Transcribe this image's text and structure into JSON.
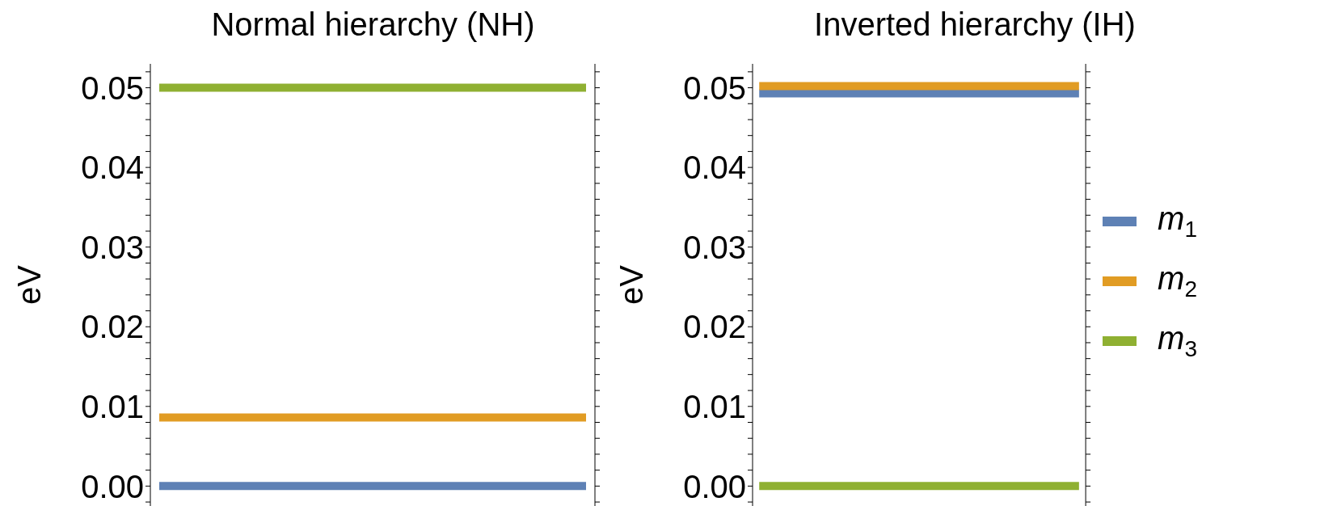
{
  "chart_data": [
    {
      "type": "line",
      "title": "Normal hierarchy (NH)",
      "ylabel": "eV",
      "categories": [
        null,
        null,
        null,
        null,
        null,
        null,
        null,
        null,
        null,
        null,
        null,
        null,
        null,
        null,
        null,
        null,
        null,
        null,
        null,
        null,
        null,
        null,
        null,
        null,
        null
      ],
      "tick_labels": "y",
      "legend": false,
      "ylim": [
        -0.0025,
        0.053
      ],
      "yticks": [
        {
          "value": -0.002,
          "label": null
        },
        {
          "value": 0,
          "label": "0.00"
        },
        {
          "value": 0.002,
          "label": null
        },
        {
          "value": 0.004,
          "label": null
        },
        {
          "value": 0.006,
          "label": null
        },
        {
          "value": 0.008,
          "label": null
        },
        0.01,
        {
          "value": 0.012,
          "label": null
        },
        {
          "value": 0.014,
          "label": null
        },
        {
          "value": 0.016,
          "label": null
        },
        {
          "value": 0.018,
          "label": null
        },
        0.02,
        {
          "value": 0.022,
          "label": null
        },
        {
          "value": 0.024,
          "label": null
        },
        {
          "value": 0.026,
          "label": null
        },
        {
          "value": 0.028,
          "label": null
        },
        0.03,
        {
          "value": 0.032,
          "label": null
        },
        {
          "value": 0.034,
          "label": null
        },
        {
          "value": 0.036,
          "label": null
        },
        {
          "value": 0.038,
          "label": null
        },
        0.04,
        {
          "value": 0.042,
          "label": null
        },
        {
          "value": 0.044,
          "label": null
        },
        {
          "value": 0.046,
          "label": null
        },
        {
          "value": 0.048,
          "label": null
        },
        0.05,
        {
          "value": 0.052,
          "label": null
        }
      ],
      "series": [
        {
          "color": "#5e81b5",
          "values": [
            0,
            0,
            0,
            0,
            0,
            0,
            0,
            0,
            0,
            0,
            0,
            0,
            0,
            0,
            0,
            0,
            0,
            0,
            0,
            0,
            0,
            0,
            0,
            0,
            0
          ]
        },
        {
          "color": "#e19c24",
          "values": [
            0.0086,
            0.0086,
            0.0086,
            0.0086,
            0.0086,
            0.0086,
            0.0086,
            0.0086,
            0.0086,
            0.0086,
            0.0086,
            0.0086,
            0.0086,
            0.0086,
            0.0086,
            0.0086,
            0.0086,
            0.0086,
            0.0086,
            0.0086,
            0.0086,
            0.0086,
            0.0086,
            0.0086,
            0.0086
          ]
        },
        {
          "color": "#8fb032",
          "values": [
            0.05,
            0.05,
            0.05,
            0.05,
            0.05,
            0.05,
            0.05,
            0.05,
            0.05,
            0.05,
            0.05,
            0.05,
            0.05,
            0.05,
            0.05,
            0.05,
            0.05,
            0.05,
            0.05,
            0.05,
            0.05,
            0.05,
            0.05,
            0.05,
            0.05
          ]
        }
      ]
    },
    {
      "type": "line",
      "title": "Inverted hierarchy (IH)",
      "ylabel": "eV",
      "categories": [
        null,
        null,
        null,
        null,
        null,
        null,
        null,
        null,
        null,
        null,
        null,
        null,
        null,
        null,
        null,
        null,
        null,
        null,
        null,
        null,
        null,
        null,
        null,
        null,
        null
      ],
      "tick_labels": "y",
      "legend": "right",
      "ylim": [
        -0.0025,
        0.053
      ],
      "yticks": [
        {
          "value": -0.002,
          "label": null
        },
        {
          "value": 0,
          "label": "0.00"
        },
        {
          "value": 0.002,
          "label": null
        },
        {
          "value": 0.004,
          "label": null
        },
        {
          "value": 0.006,
          "label": null
        },
        {
          "value": 0.008,
          "label": null
        },
        0.01,
        {
          "value": 0.012,
          "label": null
        },
        {
          "value": 0.014,
          "label": null
        },
        {
          "value": 0.016,
          "label": null
        },
        {
          "value": 0.018,
          "label": null
        },
        0.02,
        {
          "value": 0.022,
          "label": null
        },
        {
          "value": 0.024,
          "label": null
        },
        {
          "value": 0.026,
          "label": null
        },
        {
          "value": 0.028,
          "label": null
        },
        0.03,
        {
          "value": 0.032,
          "label": null
        },
        {
          "value": 0.034,
          "label": null
        },
        {
          "value": 0.036,
          "label": null
        },
        {
          "value": 0.038,
          "label": null
        },
        0.04,
        {
          "value": 0.042,
          "label": null
        },
        {
          "value": 0.044,
          "label": null
        },
        {
          "value": 0.046,
          "label": null
        },
        {
          "value": 0.048,
          "label": null
        },
        0.05,
        {
          "value": 0.052,
          "label": null
        }
      ],
      "series": [
        {
          "name": "m$_{1}$",
          "color": "#5e81b5",
          "values": [
            0.0493,
            0.0493,
            0.0493,
            0.0493,
            0.0493,
            0.0493,
            0.0493,
            0.0493,
            0.0493,
            0.0493,
            0.0493,
            0.0493,
            0.0493,
            0.0493,
            0.0493,
            0.0493,
            0.0493,
            0.0493,
            0.0493,
            0.0493,
            0.0493,
            0.0493,
            0.0493,
            0.0493,
            0.0493
          ]
        },
        {
          "name": "m$_{2}$",
          "color": "#e19c24",
          "values": [
            0.0502,
            0.0502,
            0.0502,
            0.0502,
            0.0502,
            0.0502,
            0.0502,
            0.0502,
            0.0502,
            0.0502,
            0.0502,
            0.0502,
            0.0502,
            0.0502,
            0.0502,
            0.0502,
            0.0502,
            0.0502,
            0.0502,
            0.0502,
            0.0502,
            0.0502,
            0.0502,
            0.0502,
            0.0502
          ]
        },
        {
          "name": "m$_{3}$",
          "color": "#8fb032",
          "values": [
            0,
            0,
            0,
            0,
            0,
            0,
            0,
            0,
            0,
            0,
            0,
            0,
            0,
            0,
            0,
            0,
            0,
            0,
            0,
            0,
            0,
            0,
            0,
            0,
            0
          ]
        }
      ]
    }
  ]
}
